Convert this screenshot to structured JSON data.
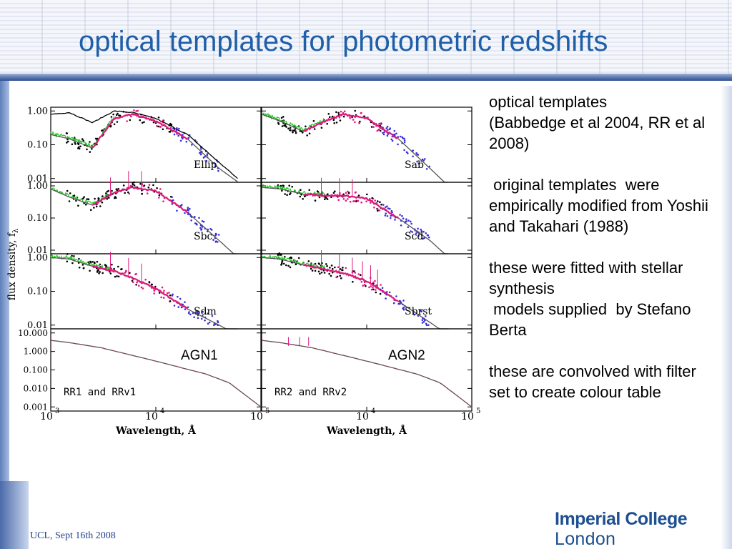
{
  "slide": {
    "title": "optical templates for photometric redshifts",
    "body": "optical templates\n(Babbedge et al 2004, RR et al 2008)\n\n original templates  were empirically modified from Yoshii and Takahari (1988)\n\nthese were fitted with stellar synthesis\n models supplied  by Stefano Berta\n\nthese are convolved with filter set to create colour table",
    "footer": "UCL, Sept 16th 2008",
    "logo_line1": "Imperial College",
    "logo_line2": "London"
  },
  "colors": {
    "title": "#1f5fa8",
    "band_rule": "#2f4f8f",
    "footer": "#1f3f8f",
    "logo": "#1d4f91",
    "template_black": "#000000",
    "template_magenta": "#e0197d",
    "template_green": "#22c522",
    "template_blue": "#3b2fd6",
    "template_grey": "#555555"
  },
  "figure": {
    "y_axis_label": "flux density, f",
    "y_axis_label_sub": "λ",
    "x_axis_label": "Wavelength, Å",
    "x_ticks_left": [
      "10",
      "10",
      "10"
    ],
    "x_ticks_right": [
      "10",
      "10"
    ],
    "x_tick_exponents_left": [
      "3",
      "4",
      "5"
    ],
    "x_tick_exponents_right": [
      "4",
      "5"
    ],
    "y_ticks_standard": [
      "1.00",
      "0.10",
      "0.01"
    ],
    "y_ticks_agn": [
      "10.000",
      "1.000",
      "0.100",
      "0.010",
      "0.001"
    ],
    "panels": [
      {
        "label": "Ellip",
        "kind": "ellip"
      },
      {
        "label": "Sab",
        "kind": "sab"
      },
      {
        "label": "Sbc",
        "kind": "sbc"
      },
      {
        "label": "Scd",
        "kind": "scd"
      },
      {
        "label": "Sdm",
        "kind": "sdm"
      },
      {
        "label": "Sbrst",
        "kind": "sbrst"
      },
      {
        "label": "RR1 and RRv1",
        "kind": "agn",
        "overlay": "AGN1"
      },
      {
        "label": "RR2 and RRv2",
        "kind": "agn",
        "overlay": "AGN2"
      }
    ]
  },
  "chart_data": {
    "type": "line",
    "title": "",
    "xlabel": "Wavelength, Å",
    "ylabel": "flux density, fλ",
    "x_scale": "log",
    "xlim": [
      1000,
      100000
    ],
    "y_scale": "log",
    "grid": false,
    "legend": "none",
    "panels": [
      {
        "label": "Ellip",
        "ylim": [
          0.01,
          1.0
        ],
        "series": [
          {
            "x": [
              1000,
              1500,
              2500,
              4000,
              6000,
              10000,
              20000,
              40000,
              60000
            ],
            "y": [
              0.8,
              0.9,
              0.45,
              1.0,
              0.9,
              0.6,
              0.2,
              0.03,
              0.01
            ]
          },
          {
            "x": [
              1000,
              1500,
              2500,
              4000,
              6000,
              10000,
              20000,
              40000,
              60000
            ],
            "y": [
              0.2,
              0.15,
              0.08,
              0.6,
              0.8,
              0.5,
              0.15,
              0.02,
              0.008
            ]
          }
        ]
      },
      {
        "label": "Sab",
        "ylim": [
          0.01,
          1.0
        ],
        "series": [
          {
            "x": [
              1000,
              1500,
              2500,
              4000,
              6000,
              10000,
              20000,
              40000,
              60000
            ],
            "y": [
              0.8,
              0.5,
              0.25,
              0.5,
              0.8,
              0.6,
              0.15,
              0.02,
              0.006
            ]
          }
        ]
      },
      {
        "label": "Sbc",
        "ylim": [
          0.01,
          1.0
        ],
        "series": [
          {
            "x": [
              1000,
              1500,
              2500,
              4000,
              6000,
              10000,
              20000,
              40000,
              60000
            ],
            "y": [
              0.8,
              0.45,
              0.25,
              0.6,
              0.9,
              0.7,
              0.15,
              0.02,
              0.006
            ]
          }
        ]
      },
      {
        "label": "Scd",
        "ylim": [
          0.01,
          1.0
        ],
        "series": [
          {
            "x": [
              1000,
              1500,
              2500,
              4000,
              6000,
              10000,
              20000,
              40000,
              60000
            ],
            "y": [
              0.9,
              0.8,
              0.55,
              0.5,
              0.5,
              0.4,
              0.1,
              0.02,
              0.006
            ]
          }
        ]
      },
      {
        "label": "Sdm",
        "ylim": [
          0.01,
          1.0
        ],
        "series": [
          {
            "x": [
              1000,
              1500,
              2500,
              4000,
              6000,
              10000,
              20000,
              40000,
              60000
            ],
            "y": [
              1.0,
              0.9,
              0.55,
              0.4,
              0.25,
              0.12,
              0.03,
              0.01,
              0.005
            ]
          }
        ]
      },
      {
        "label": "Sbrst",
        "ylim": [
          0.01,
          1.0
        ],
        "series": [
          {
            "x": [
              1000,
              1500,
              2500,
              4000,
              6000,
              10000,
              20000,
              40000,
              60000
            ],
            "y": [
              1.0,
              0.9,
              0.6,
              0.45,
              0.35,
              0.2,
              0.05,
              0.012,
              0.005
            ]
          }
        ]
      },
      {
        "label": "RR1 and RRv1",
        "ylim": [
          0.001,
          10.0
        ],
        "series": [
          {
            "x": [
              1000,
              1500,
              3000,
              10000,
              30000,
              50000,
              100000
            ],
            "y": [
              4.0,
              3.0,
              1.6,
              0.3,
              0.06,
              0.02,
              0.001
            ]
          }
        ]
      },
      {
        "label": "RR2 and RRv2",
        "ylim": [
          0.001,
          10.0
        ],
        "series": [
          {
            "x": [
              1000,
              1500,
              3000,
              10000,
              30000,
              50000,
              100000
            ],
            "y": [
              4.0,
              3.0,
              1.6,
              0.3,
              0.06,
              0.02,
              0.001
            ]
          }
        ]
      }
    ]
  }
}
